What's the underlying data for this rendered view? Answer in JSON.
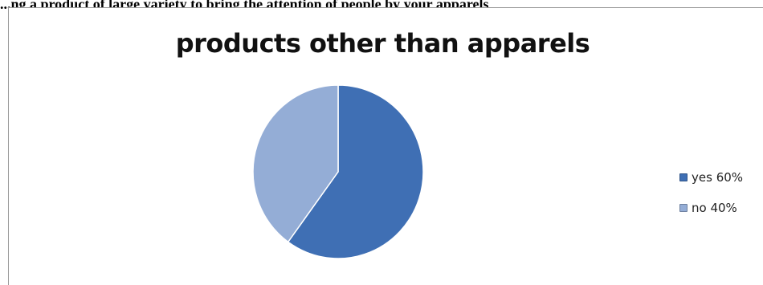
{
  "caption": "...ng a product of large variety to bring the attention of people by your apparels",
  "chart_data": {
    "type": "pie",
    "title": "products other than apparels",
    "categories": [
      "yes 60%",
      "no 40%"
    ],
    "values": [
      60,
      40
    ],
    "colors": [
      "#3f6fb4",
      "#94add6"
    ],
    "legend_placement": "right"
  }
}
